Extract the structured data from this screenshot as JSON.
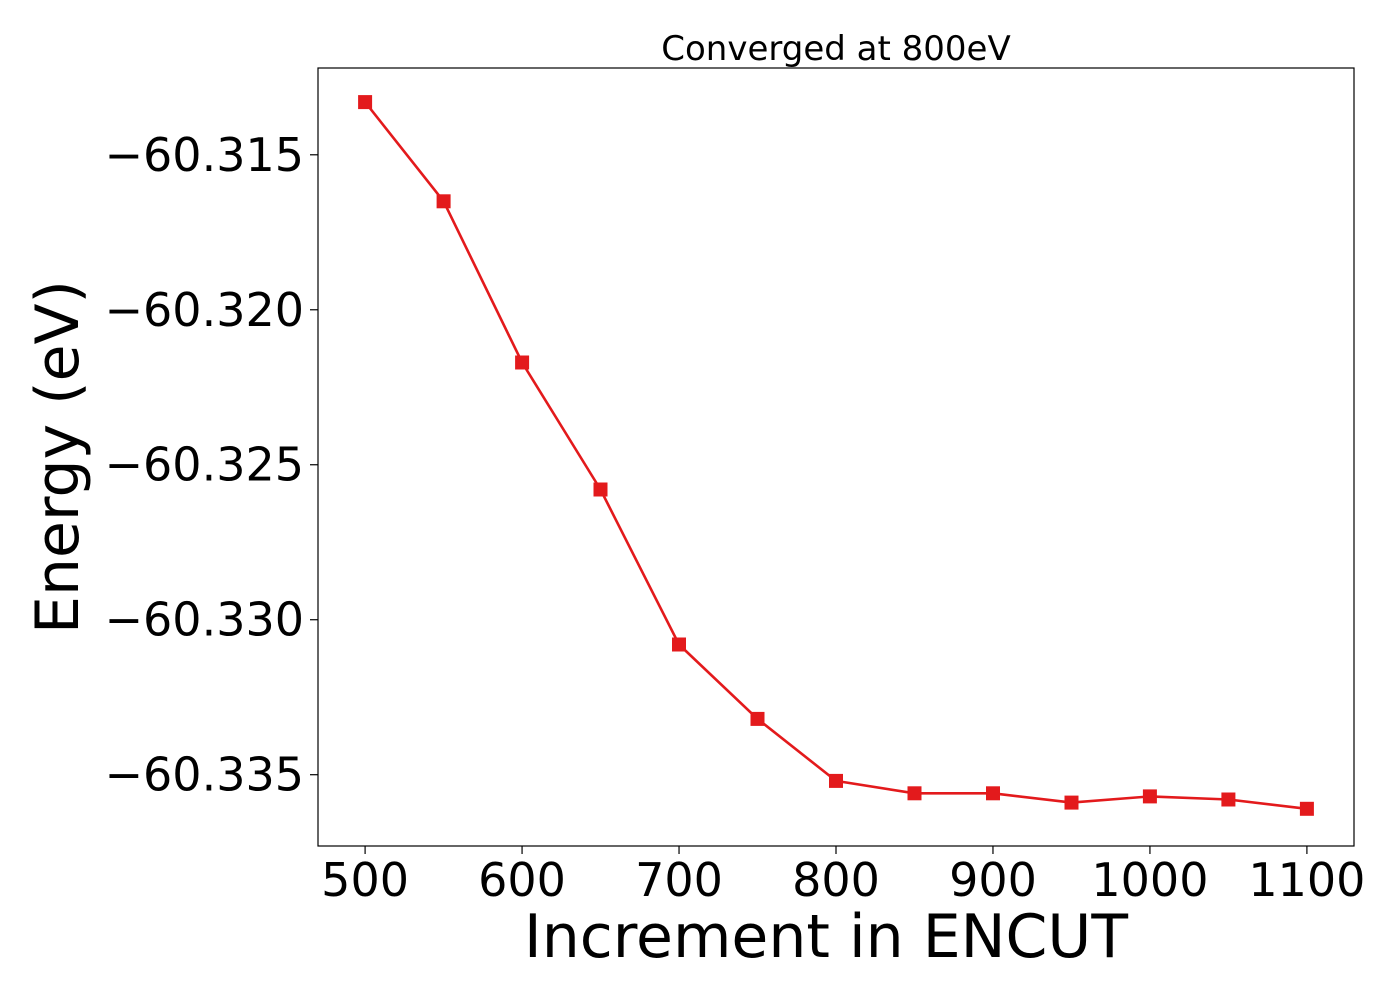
{
  "chart_data": {
    "type": "line",
    "title": "Converged at 800eV",
    "xlabel": "Increment in ENCUT",
    "ylabel": "Energy (eV)",
    "xlim": [
      470,
      1130
    ],
    "ylim": [
      -60.3373,
      -60.3122
    ],
    "x_ticks": [
      500,
      600,
      700,
      800,
      900,
      1000,
      1100
    ],
    "x_tick_labels": [
      "500",
      "600",
      "700",
      "800",
      "900",
      "1000",
      "1100"
    ],
    "y_ticks": [
      -60.315,
      -60.32,
      -60.325,
      -60.33,
      -60.335
    ],
    "y_tick_labels": [
      "−60.315",
      "−60.320",
      "−60.325",
      "−60.330",
      "−60.335"
    ],
    "grid": false,
    "series": [
      {
        "color": "#e31a1c",
        "marker": "square",
        "x": [
          500,
          550,
          600,
          650,
          700,
          750,
          800,
          850,
          900,
          950,
          1000,
          1050,
          1100
        ],
        "y": [
          -60.3133,
          -60.3165,
          -60.3217,
          -60.3258,
          -60.3308,
          -60.3332,
          -60.3352,
          -60.3356,
          -60.3356,
          -60.3359,
          -60.3357,
          -60.3358,
          -60.3361
        ]
      }
    ]
  }
}
